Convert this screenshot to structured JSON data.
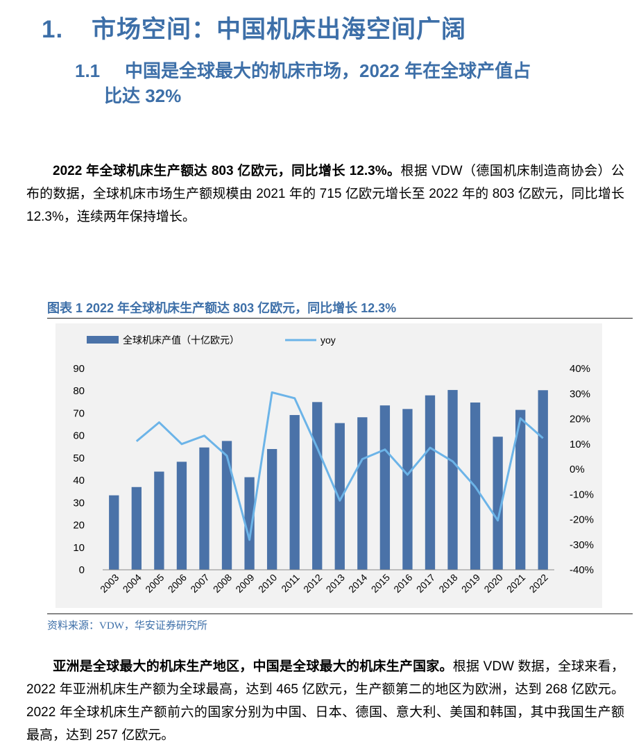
{
  "heading1": {
    "num": "1.",
    "text": "市场空间：中国机床出海空间广阔"
  },
  "heading2": {
    "num": "1.1",
    "line1": "中国是全球最大的机床市场，2022 年在全球产值占",
    "line2": "比达 32%"
  },
  "para1": {
    "lead": "2022 年全球机床生产额达 803 亿欧元，同比增长 12.3%。",
    "body": "根据 VDW（德国机床制造商协会）公布的数据，全球机床市场生产额规模由 2021 年的 715 亿欧元增长至 2022 年的 803 亿欧元，同比增长 12.3%，连续两年保持增长。"
  },
  "figure": {
    "caption": "图表 1 2022 年全球机床生产额达 803 亿欧元，同比增长 12.3%",
    "source": "资料来源：VDW，华安证券研究所"
  },
  "chart_data": {
    "type": "bar",
    "title": "",
    "categories": [
      "2003",
      "2004",
      "2005",
      "2006",
      "2007",
      "2008",
      "2009",
      "2010",
      "2011",
      "2012",
      "2013",
      "2014",
      "2015",
      "2016",
      "2017",
      "2018",
      "2019",
      "2020",
      "2021",
      "2022"
    ],
    "series": [
      {
        "name": "全球机床产值（十亿欧元）",
        "type": "bar",
        "axis": "left",
        "color": "#4a72a8",
        "values": [
          33.3,
          37.0,
          43.9,
          48.3,
          54.7,
          57.6,
          41.4,
          54.0,
          69.2,
          75.0,
          65.6,
          68.2,
          73.5,
          71.9,
          78.0,
          80.4,
          74.8,
          59.5,
          71.5,
          80.3
        ]
      },
      {
        "name": "yoy",
        "type": "line",
        "axis": "right",
        "color": "#6cb4e8",
        "values": [
          null,
          0.111,
          0.186,
          0.1,
          0.133,
          0.053,
          -0.281,
          0.305,
          0.282,
          0.085,
          -0.125,
          0.04,
          0.078,
          -0.022,
          0.085,
          0.031,
          -0.07,
          -0.204,
          0.202,
          0.123
        ]
      }
    ],
    "ylim": [
      0,
      90
    ],
    "yticks": [
      "0",
      "10",
      "20",
      "30",
      "40",
      "50",
      "60",
      "70",
      "80",
      "90"
    ],
    "y2lim": [
      -0.4,
      0.4
    ],
    "y2ticks": [
      "-40%",
      "-30%",
      "-20%",
      "-10%",
      "0%",
      "10%",
      "20%",
      "30%",
      "40%"
    ],
    "legend": "top-left",
    "grid": false
  },
  "para2": {
    "lead": "亚洲是全球最大的机床生产地区，中国是全球最大的机床生产国家。",
    "body": "根据 VDW 数据，全球来看，2022 年亚洲机床生产额为全球最高，达到 465 亿欧元，生产额第二的地区为欧洲，达到 268 亿欧元。2022 年全球机床生产额前六的国家分别为中国、日本、德国、意大利、美国和韩国，其中我国生产额最高，达到 257 亿欧元。"
  }
}
